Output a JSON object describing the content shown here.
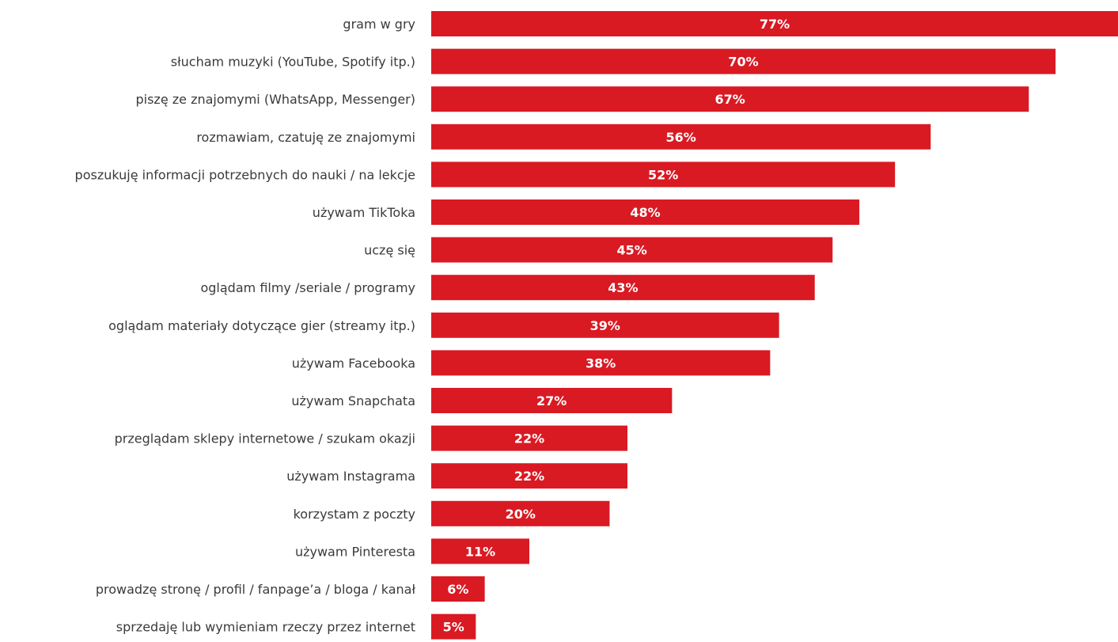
{
  "chart_data": {
    "type": "bar",
    "orientation": "horizontal",
    "title": "",
    "xlabel": "",
    "ylabel": "",
    "categories": [
      "gram w gry",
      "słucham muzyki (YouTube, Spotify itp.)",
      "piszę ze znajomymi (WhatsApp, Messenger)",
      "rozmawiam, czatuję ze znajomymi",
      "poszukuję informacji potrzebnych do nauki / na lekcje",
      "używam TikToka",
      "uczę się",
      "oglądam filmy /seriale / programy",
      "oglądam materiały dotyczące gier (streamy itp.)",
      "używam Facebooka",
      "używam Snapchata",
      "przeglądam sklepy internetowe / szukam okazji",
      "używam Instagrama",
      "korzystam z poczty",
      "używam Pinteresta",
      "prowadzę stronę / profil / fanpage’a / bloga / kanał",
      "sprzedaję lub wymieniam rzeczy przez internet"
    ],
    "values": [
      77,
      70,
      67,
      56,
      52,
      48,
      45,
      43,
      39,
      38,
      27,
      22,
      22,
      20,
      11,
      6,
      5
    ],
    "value_labels": [
      "77%",
      "70%",
      "67%",
      "56%",
      "52%",
      "48%",
      "45%",
      "43%",
      "39%",
      "38%",
      "27%",
      "22%",
      "22%",
      "20%",
      "11%",
      "6%",
      "5%"
    ],
    "xlim": [
      0,
      77
    ],
    "grid": false,
    "bar_color": "#d91a23",
    "label_color": "#3a3a3a",
    "value_label_color": "#ffffff"
  }
}
